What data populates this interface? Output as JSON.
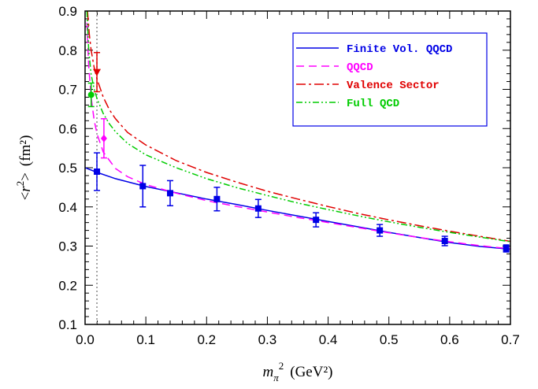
{
  "chart_data": {
    "type": "line",
    "xlabel": {
      "m": "m",
      "sub": "π",
      "sup": "2",
      "unit": "(GeV²)"
    },
    "ylabel": {
      "open": "<",
      "r": "r",
      "sup": "2",
      "close": ">",
      "unit": "(fm²)"
    },
    "xlim": [
      0.0,
      0.7
    ],
    "ylim": [
      0.1,
      0.9
    ],
    "xticks": [
      "0.0",
      "0.1",
      "0.2",
      "0.3",
      "0.4",
      "0.5",
      "0.6",
      "0.7"
    ],
    "yticks": [
      "0.1",
      "0.2",
      "0.3",
      "0.4",
      "0.5",
      "0.6",
      "0.7",
      "0.8",
      "0.9"
    ],
    "vertical_reference_x": 0.0195,
    "legend_position": "top-right",
    "series": [
      {
        "name": "Finite Vol. QQCD",
        "color": "#0000e6",
        "dash": "solid",
        "x": [
          0.0,
          0.02,
          0.05,
          0.1,
          0.15,
          0.2,
          0.25,
          0.3,
          0.35,
          0.4,
          0.45,
          0.5,
          0.55,
          0.6,
          0.65,
          0.7
        ],
        "y": [
          0.5,
          0.488,
          0.472,
          0.452,
          0.436,
          0.42,
          0.406,
          0.391,
          0.377,
          0.363,
          0.349,
          0.335,
          0.322,
          0.309,
          0.299,
          0.292
        ]
      },
      {
        "name": "QQCD",
        "color": "#ff00ff",
        "dash": "10,6",
        "x": [
          0.003,
          0.006,
          0.01,
          0.015,
          0.02,
          0.03,
          0.05,
          0.07,
          0.1,
          0.15,
          0.2,
          0.25,
          0.3,
          0.35,
          0.4,
          0.45,
          0.5,
          0.55,
          0.6,
          0.65,
          0.7
        ],
        "y": [
          0.87,
          0.76,
          0.68,
          0.62,
          0.585,
          0.54,
          0.498,
          0.477,
          0.457,
          0.435,
          0.416,
          0.401,
          0.387,
          0.373,
          0.36,
          0.347,
          0.334,
          0.322,
          0.311,
          0.301,
          0.293
        ]
      },
      {
        "name": "Valence Sector",
        "color": "#e00000",
        "dash": "12,4,3,4",
        "x": [
          0.004,
          0.007,
          0.01,
          0.015,
          0.02,
          0.03,
          0.04,
          0.05,
          0.07,
          0.1,
          0.15,
          0.2,
          0.25,
          0.3,
          0.35,
          0.4,
          0.45,
          0.5,
          0.55,
          0.6,
          0.65,
          0.7
        ],
        "y": [
          0.9,
          0.84,
          0.8,
          0.755,
          0.725,
          0.68,
          0.648,
          0.625,
          0.59,
          0.558,
          0.518,
          0.488,
          0.463,
          0.44,
          0.42,
          0.401,
          0.383,
          0.367,
          0.352,
          0.338,
          0.325,
          0.312
        ]
      },
      {
        "name": "Full QCD",
        "color": "#00cc00",
        "dash": "8,3,2,3,2,3",
        "x": [
          0.003,
          0.006,
          0.01,
          0.015,
          0.02,
          0.03,
          0.04,
          0.05,
          0.07,
          0.1,
          0.15,
          0.2,
          0.25,
          0.3,
          0.35,
          0.4,
          0.45,
          0.5,
          0.55,
          0.6,
          0.65,
          0.7
        ],
        "y": [
          0.9,
          0.8,
          0.738,
          0.7,
          0.675,
          0.638,
          0.612,
          0.592,
          0.562,
          0.533,
          0.5,
          0.472,
          0.449,
          0.429,
          0.41,
          0.393,
          0.377,
          0.362,
          0.348,
          0.335,
          0.323,
          0.311
        ]
      }
    ],
    "points": [
      {
        "group": "Finite Vol. QQCD",
        "marker": "square",
        "color": "#0000e6",
        "x": 0.0195,
        "y": 0.49,
        "err": 0.048
      },
      {
        "group": "Finite Vol. QQCD",
        "marker": "square",
        "color": "#0000e6",
        "x": 0.095,
        "y": 0.453,
        "err": 0.053
      },
      {
        "group": "Finite Vol. QQCD",
        "marker": "square",
        "color": "#0000e6",
        "x": 0.14,
        "y": 0.435,
        "err": 0.032
      },
      {
        "group": "Finite Vol. QQCD",
        "marker": "square",
        "color": "#0000e6",
        "x": 0.217,
        "y": 0.42,
        "err": 0.03
      },
      {
        "group": "Finite Vol. QQCD",
        "marker": "square",
        "color": "#0000e6",
        "x": 0.285,
        "y": 0.396,
        "err": 0.023
      },
      {
        "group": "Finite Vol. QQCD",
        "marker": "square",
        "color": "#0000e6",
        "x": 0.38,
        "y": 0.367,
        "err": 0.018
      },
      {
        "group": "Finite Vol. QQCD",
        "marker": "square",
        "color": "#0000e6",
        "x": 0.485,
        "y": 0.34,
        "err": 0.015
      },
      {
        "group": "Finite Vol. QQCD",
        "marker": "square",
        "color": "#0000e6",
        "x": 0.592,
        "y": 0.313,
        "err": 0.012
      },
      {
        "group": "Finite Vol. QQCD",
        "marker": "square",
        "color": "#0000e6",
        "x": 0.693,
        "y": 0.294,
        "err": 0.009
      },
      {
        "group": "QQCD",
        "marker": "diamond",
        "color": "#ff00ff",
        "x": 0.031,
        "y": 0.575,
        "err": 0.05
      },
      {
        "group": "Valence Sector",
        "marker": "triangle-down",
        "color": "#e00000",
        "x": 0.0195,
        "y": 0.744,
        "err": 0.05
      },
      {
        "group": "Full QCD",
        "marker": "circle",
        "color": "#00cc00",
        "x": 0.01,
        "y": 0.686,
        "err": 0.03
      }
    ]
  }
}
